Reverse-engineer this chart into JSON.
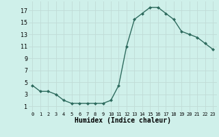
{
  "x": [
    0,
    1,
    2,
    3,
    4,
    5,
    6,
    7,
    8,
    9,
    10,
    11,
    12,
    13,
    14,
    15,
    16,
    17,
    18,
    19,
    20,
    21,
    22,
    23
  ],
  "y": [
    4.5,
    3.5,
    3.5,
    3.0,
    2.0,
    1.5,
    1.5,
    1.5,
    1.5,
    1.5,
    2.0,
    4.5,
    11.0,
    15.5,
    16.5,
    17.5,
    17.5,
    16.5,
    15.5,
    13.5,
    13.0,
    12.5,
    11.5,
    10.5
  ],
  "line_color": "#2e6b5e",
  "marker": "D",
  "markersize": 2.0,
  "linewidth": 1.0,
  "bg_color": "#cff0ea",
  "grid_color": "#c0dbd6",
  "xlabel": "Humidex (Indice chaleur)",
  "xlabel_fontsize": 7,
  "yticks": [
    1,
    3,
    5,
    7,
    9,
    11,
    13,
    15,
    17
  ],
  "xticks": [
    0,
    1,
    2,
    3,
    4,
    5,
    6,
    7,
    8,
    9,
    10,
    11,
    12,
    13,
    14,
    15,
    16,
    17,
    18,
    19,
    20,
    21,
    22,
    23
  ],
  "ylim": [
    0,
    18.5
  ],
  "xlim": [
    -0.5,
    23.5
  ]
}
